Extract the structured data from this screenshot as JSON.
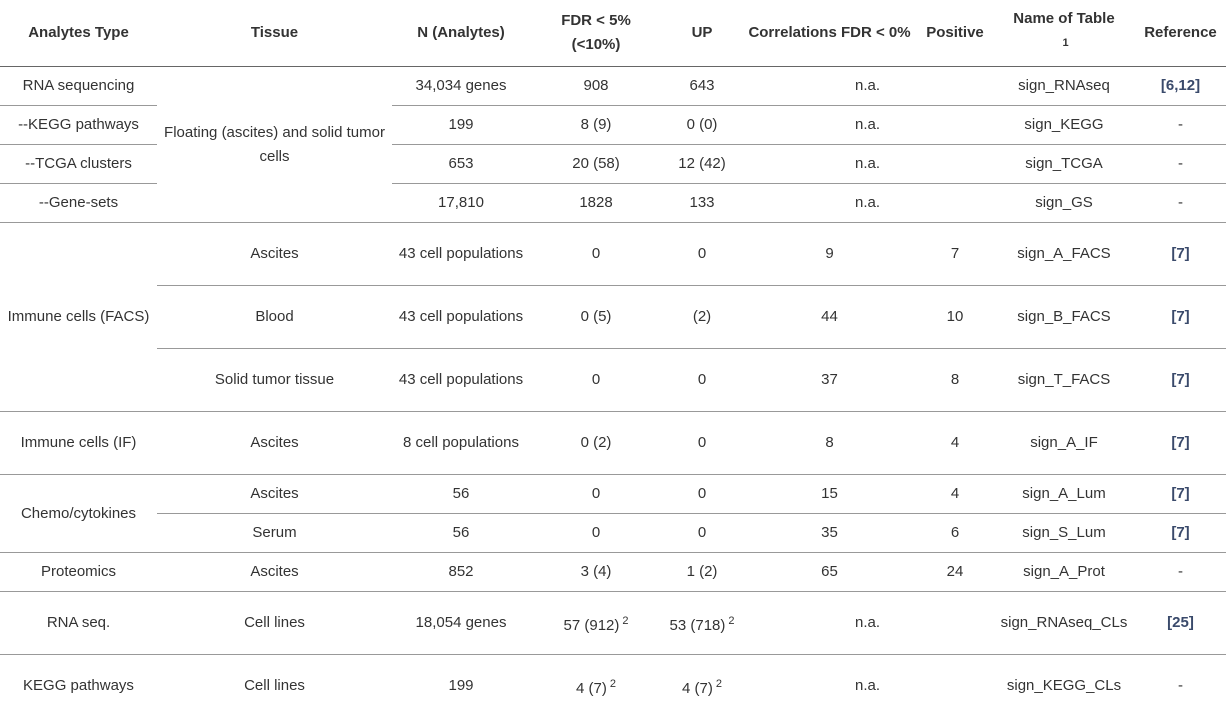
{
  "table": {
    "header": [
      "Analytes Type",
      "Tissue",
      "N (Analytes)",
      "FDR < 5% (<10%)",
      "UP",
      "Correlations FDR < 0%",
      "Positive",
      {
        "text": "Name of Table",
        "sup": "1"
      },
      "Reference"
    ],
    "rows": [
      [
        "RNA sequencing",
        "Floating (ascites) and solid tumor cells",
        "34,034 genes",
        "908",
        "643",
        "n.a.",
        "sign_RNAseq",
        "[6,12]"
      ],
      [
        "--KEGG pathways",
        "199",
        "8 (9)",
        "0 (0)",
        "n.a.",
        "sign_KEGG",
        "-"
      ],
      [
        "--TCGA clusters",
        "653",
        "20 (58)",
        "12 (42)",
        "n.a.",
        "sign_TCGA",
        "-"
      ],
      [
        "--Gene-sets",
        "17,810",
        "1828",
        "133",
        "n.a.",
        "sign_GS",
        "-"
      ],
      [
        "Immune cells (FACS)",
        "Ascites",
        "43 cell populations",
        "0",
        "0",
        "9",
        "7",
        "sign_A_FACS",
        "[7]"
      ],
      [
        "Blood",
        "43 cell populations",
        "0 (5)",
        "(2)",
        "44",
        "10",
        "sign_B_FACS",
        "[7]"
      ],
      [
        "Solid tumor tissue",
        "43 cell populations",
        "0",
        "0",
        "37",
        "8",
        "sign_T_FACS",
        "[7]"
      ],
      [
        "Immune cells (IF)",
        "Ascites",
        "8 cell populations",
        "0 (2)",
        "0",
        "8",
        "4",
        "sign_A_IF",
        "[7]"
      ],
      [
        "Chemo/cytokines",
        "Ascites",
        "56",
        "0",
        "0",
        "15",
        "4",
        "sign_A_Lum",
        "[7]"
      ],
      [
        "Serum",
        "56",
        "0",
        "0",
        "35",
        "6",
        "sign_S_Lum",
        "[7]"
      ],
      [
        "Proteomics",
        "Ascites",
        "852",
        "3 (4)",
        "1 (2)",
        "65",
        "24",
        "sign_A_Prot",
        "-"
      ],
      [
        "RNA seq.",
        "Cell lines",
        "18,054 genes",
        {
          "text": "57 (912)",
          "sup": "2"
        },
        {
          "text": "53 (718)",
          "sup": "2"
        },
        "n.a.",
        "sign_RNAseq_CLs",
        "[25]"
      ],
      [
        "KEGG pathways",
        "Cell lines",
        "199",
        {
          "text": "4 (7)",
          "sup": "2"
        },
        {
          "text": "4 (7)",
          "sup": "2"
        },
        "n.a.",
        "sign_KEGG_CLs",
        "-"
      ]
    ]
  }
}
